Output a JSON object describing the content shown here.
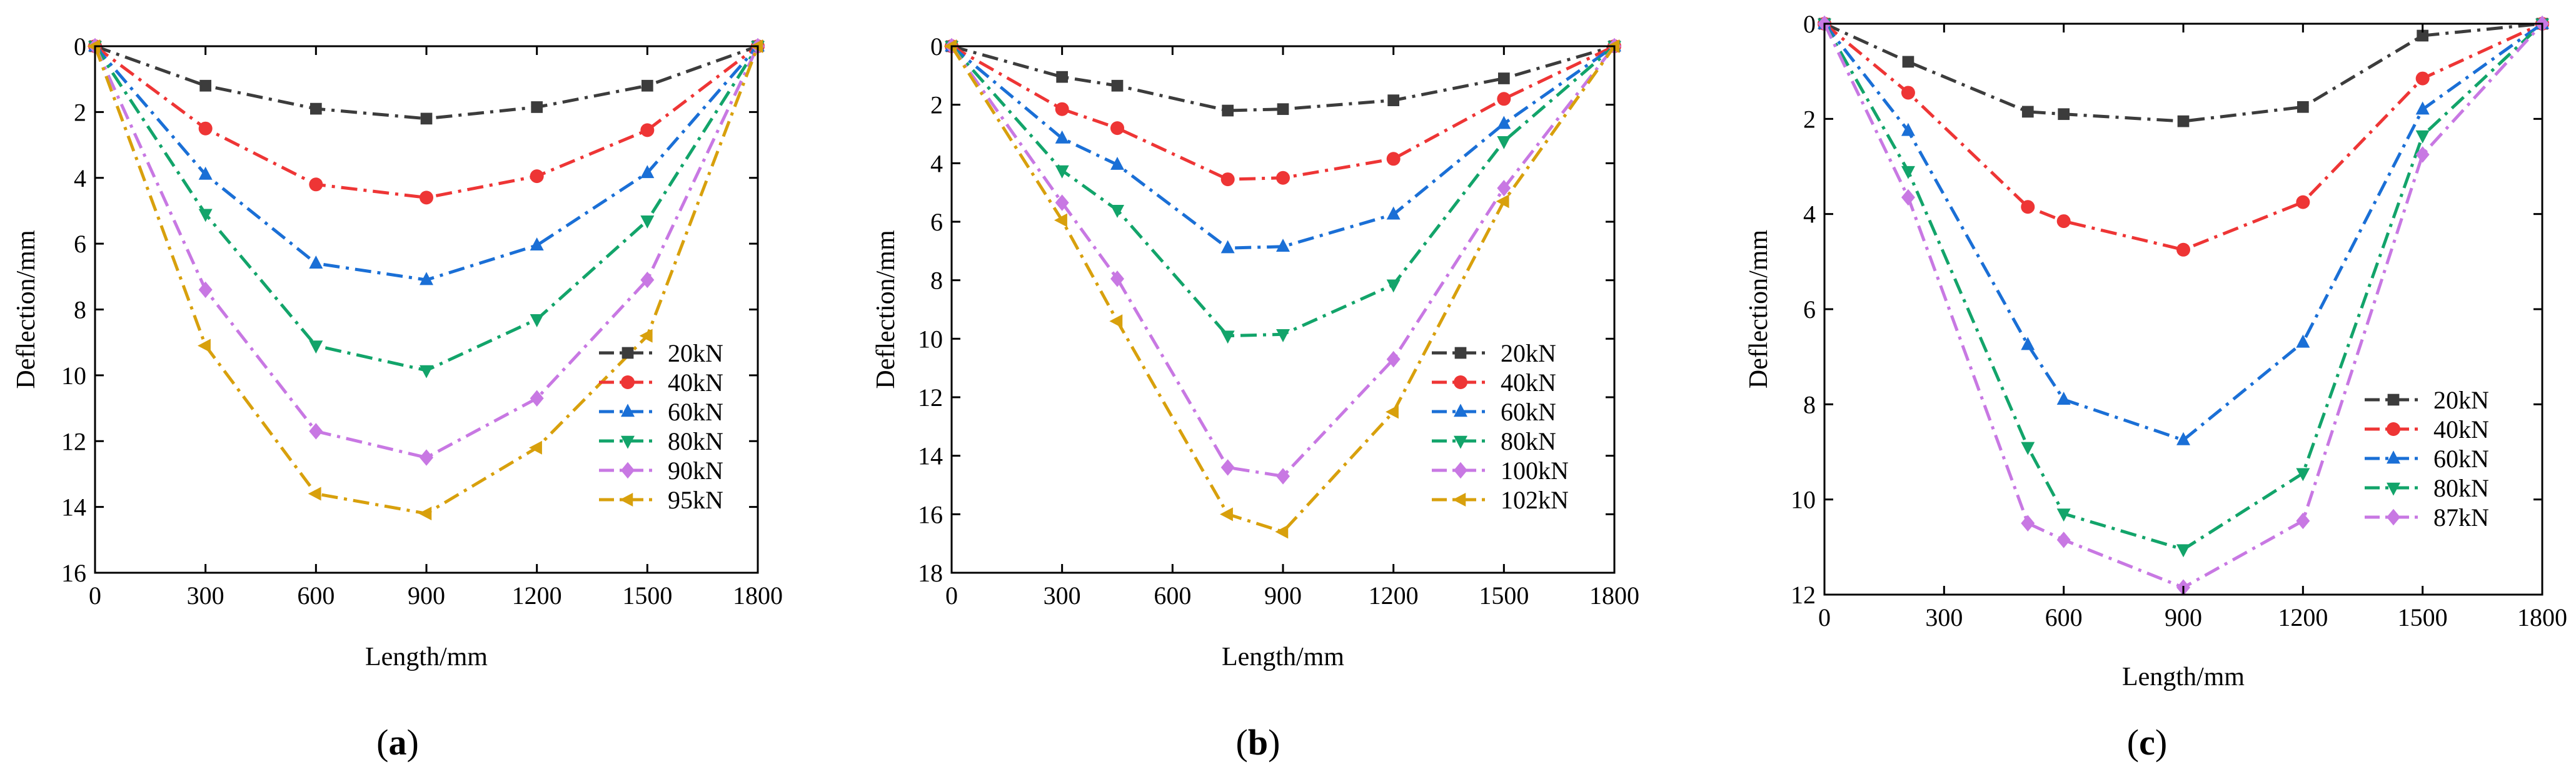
{
  "figure": {
    "panel_labels": [
      "a",
      "b",
      "c"
    ]
  },
  "series_styles": {
    "20kN": {
      "color": "#3c3c3c",
      "marker": "square"
    },
    "40kN": {
      "color": "#ee3535",
      "marker": "circle"
    },
    "60kN": {
      "color": "#1a6fd6",
      "marker": "triangle-up"
    },
    "80kN": {
      "color": "#12a46a",
      "marker": "triangle-down"
    },
    "90kN": {
      "color": "#c878e3",
      "marker": "diamond"
    },
    "100kN": {
      "color": "#c878e3",
      "marker": "diamond"
    },
    "87kN": {
      "color": "#c878e3",
      "marker": "diamond"
    },
    "95kN": {
      "color": "#d8a00c",
      "marker": "triangle-left"
    },
    "102kN": {
      "color": "#d8a00c",
      "marker": "triangle-left"
    }
  },
  "chart_data": [
    {
      "type": "line",
      "panel": "a",
      "xlabel": "Length/mm",
      "ylabel": "Deflection/mm",
      "xlim": [
        0,
        1800
      ],
      "ylim": [
        0,
        16
      ],
      "y_inverted": true,
      "xticks": [
        0,
        300,
        600,
        900,
        1200,
        1500,
        1800
      ],
      "yticks": [
        0,
        2,
        4,
        6,
        8,
        10,
        12,
        14,
        16
      ],
      "legend_position": "right",
      "series": [
        {
          "name": "20kN",
          "x": [
            0,
            300,
            600,
            900,
            1200,
            1500,
            1800
          ],
          "y": [
            0,
            1.2,
            1.9,
            2.2,
            1.85,
            1.2,
            0
          ]
        },
        {
          "name": "40kN",
          "x": [
            0,
            300,
            600,
            900,
            1200,
            1500,
            1800
          ],
          "y": [
            0,
            2.5,
            4.2,
            4.6,
            3.95,
            2.55,
            0
          ]
        },
        {
          "name": "60kN",
          "x": [
            0,
            300,
            600,
            900,
            1200,
            1500,
            1800
          ],
          "y": [
            0,
            3.9,
            6.6,
            7.1,
            6.05,
            3.85,
            0
          ]
        },
        {
          "name": "80kN",
          "x": [
            0,
            300,
            600,
            900,
            1200,
            1500,
            1800
          ],
          "y": [
            0,
            5.1,
            9.1,
            9.85,
            8.3,
            5.3,
            0
          ]
        },
        {
          "name": "90kN",
          "x": [
            0,
            300,
            600,
            900,
            1200,
            1500,
            1800
          ],
          "y": [
            0,
            7.4,
            11.7,
            12.5,
            10.7,
            7.1,
            0
          ]
        },
        {
          "name": "95kN",
          "x": [
            0,
            300,
            600,
            900,
            1200,
            1500,
            1800
          ],
          "y": [
            0,
            9.1,
            13.6,
            14.2,
            12.2,
            8.8,
            0
          ]
        }
      ]
    },
    {
      "type": "line",
      "panel": "b",
      "xlabel": "Length/mm",
      "ylabel": "Deflection/mm",
      "xlim": [
        0,
        1800
      ],
      "ylim": [
        0,
        18
      ],
      "y_inverted": true,
      "xticks": [
        0,
        300,
        600,
        900,
        1200,
        1500,
        1800
      ],
      "yticks": [
        0,
        2,
        4,
        6,
        8,
        10,
        12,
        14,
        16,
        18
      ],
      "legend_position": "right",
      "series": [
        {
          "name": "20kN",
          "x": [
            0,
            300,
            450,
            750,
            900,
            1200,
            1500,
            1800
          ],
          "y": [
            0,
            1.05,
            1.35,
            2.2,
            2.15,
            1.85,
            1.1,
            0
          ]
        },
        {
          "name": "40kN",
          "x": [
            0,
            300,
            450,
            750,
            900,
            1200,
            1500,
            1800
          ],
          "y": [
            0,
            2.15,
            2.8,
            4.55,
            4.5,
            3.85,
            1.8,
            0
          ]
        },
        {
          "name": "60kN",
          "x": [
            0,
            300,
            450,
            750,
            900,
            1200,
            1500,
            1800
          ],
          "y": [
            0,
            3.15,
            4.05,
            6.9,
            6.85,
            5.75,
            2.65,
            0
          ]
        },
        {
          "name": "80kN",
          "x": [
            0,
            300,
            450,
            750,
            900,
            1200,
            1500,
            1800
          ],
          "y": [
            0,
            4.25,
            5.6,
            9.9,
            9.85,
            8.15,
            3.25,
            0
          ]
        },
        {
          "name": "100kN",
          "x": [
            0,
            300,
            450,
            750,
            900,
            1200,
            1500,
            1800
          ],
          "y": [
            0,
            5.35,
            7.95,
            14.4,
            14.7,
            10.7,
            4.85,
            0
          ]
        },
        {
          "name": "102kN",
          "x": [
            0,
            300,
            450,
            750,
            900,
            1200,
            1500,
            1800
          ],
          "y": [
            0,
            5.95,
            9.4,
            16.0,
            16.6,
            12.5,
            5.3,
            0
          ]
        }
      ]
    },
    {
      "type": "line",
      "panel": "c",
      "xlabel": "Length/mm",
      "ylabel": "Deflection/mm",
      "xlim": [
        0,
        1800
      ],
      "ylim": [
        0,
        12
      ],
      "y_inverted": true,
      "xticks": [
        0,
        300,
        600,
        900,
        1200,
        1500,
        1800
      ],
      "yticks": [
        0,
        2,
        4,
        6,
        8,
        10,
        12
      ],
      "legend_position": "right",
      "series": [
        {
          "name": "20kN",
          "x": [
            0,
            210,
            510,
            600,
            900,
            1200,
            1500,
            1800
          ],
          "y": [
            0,
            0.8,
            1.85,
            1.9,
            2.05,
            1.75,
            0.25,
            0
          ]
        },
        {
          "name": "40kN",
          "x": [
            0,
            210,
            510,
            600,
            900,
            1200,
            1500,
            1800
          ],
          "y": [
            0,
            1.45,
            3.85,
            4.15,
            4.75,
            3.75,
            1.15,
            0
          ]
        },
        {
          "name": "60kN",
          "x": [
            0,
            210,
            510,
            600,
            900,
            1200,
            1500,
            1800
          ],
          "y": [
            0,
            2.25,
            6.75,
            7.9,
            8.75,
            6.7,
            1.8,
            0
          ]
        },
        {
          "name": "80kN",
          "x": [
            0,
            210,
            510,
            600,
            900,
            1200,
            1500,
            1800
          ],
          "y": [
            0,
            3.1,
            8.9,
            10.3,
            11.05,
            9.45,
            2.35,
            0
          ]
        },
        {
          "name": "87kN",
          "x": [
            0,
            210,
            510,
            600,
            900,
            1200,
            1500,
            1800
          ],
          "y": [
            0,
            3.65,
            10.5,
            10.85,
            11.85,
            10.45,
            2.75,
            0
          ]
        }
      ]
    }
  ]
}
